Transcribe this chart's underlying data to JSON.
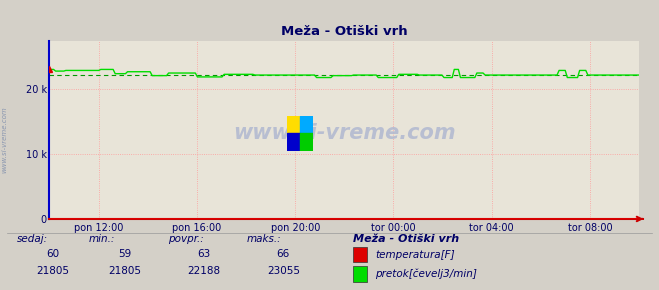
{
  "title": "Meža - Otiški vrh",
  "bg_color": "#d4d0c8",
  "plot_bg_color": "#e8e4d8",
  "x_labels": [
    "pon 12:00",
    "pon 16:00",
    "pon 20:00",
    "tor 00:00",
    "tor 04:00",
    "tor 08:00"
  ],
  "x_ticks_norm": [
    0.0833,
    0.25,
    0.4167,
    0.5833,
    0.75,
    0.9167
  ],
  "ylim": [
    0,
    27500
  ],
  "yticks": [
    0,
    10000,
    20000
  ],
  "ytick_labels": [
    "0",
    "10 k",
    "20 k"
  ],
  "temp_color": "#dd0000",
  "flow_color": "#00dd00",
  "avg_color": "#009900",
  "flow_avg": 22188,
  "flow_max": 23055,
  "flow_min": 21805,
  "flow_value": 21805,
  "temp_value": 60,
  "temp_min": 59,
  "temp_avg": 63,
  "temp_max": 66,
  "watermark": "www.si-vreme.com",
  "footer_label1": "sedaj:",
  "footer_label2": "min.:",
  "footer_label3": "povpr.:",
  "footer_label4": "maks.:",
  "footer_station": "Meža - Otiški vrh",
  "legend_temp": "temperatura[F]",
  "legend_flow": "pretok[čevelj3/min]",
  "n_points": 288,
  "spine_left_color": "#0000cc",
  "spine_bottom_color": "#cc0000",
  "grid_color": "#ff9999",
  "text_color": "#000066",
  "watermark_color": "#b0b8d0"
}
